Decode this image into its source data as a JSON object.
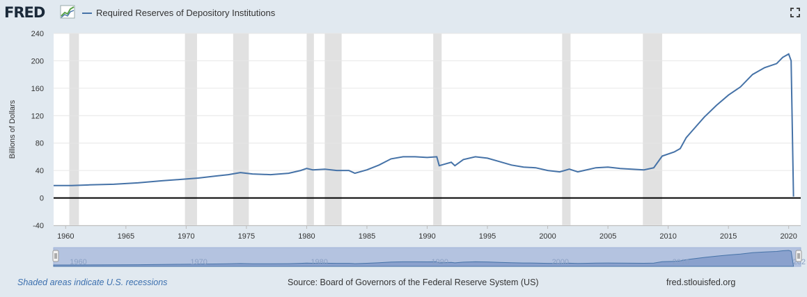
{
  "header": {
    "logo_text": "FRED",
    "legend_label": "Required Reserves of Depository Institutions",
    "fullscreen_icon": "fullscreen-icon"
  },
  "footer": {
    "recession_note": "Shaded areas indicate U.S. recessions",
    "source": "Source: Board of Governors of the Federal Reserve System (US)",
    "url": "fred.stlouisfed.org"
  },
  "colors": {
    "series": "#4572a7",
    "recession": "#e1e1e1",
    "background": "#e1e9f0",
    "navigator_fill": "#b4c3e0"
  },
  "chart_data": {
    "type": "line",
    "title": "",
    "xlabel": "",
    "ylabel": "Billions of Dollars",
    "xlim": [
      1959,
      2021
    ],
    "ylim": [
      -40,
      240
    ],
    "yticks": [
      -40,
      0,
      40,
      80,
      120,
      160,
      200,
      240
    ],
    "xticks": [
      1960,
      1965,
      1970,
      1975,
      1980,
      1985,
      1990,
      1995,
      2000,
      2005,
      2010,
      2015,
      2020
    ],
    "navigator_labels": [
      "1960",
      "1970",
      "1980",
      "1990",
      "2000",
      "2010",
      "202"
    ],
    "zero_line": true,
    "grid": true,
    "legend_position": "top-left",
    "recessions": [
      [
        1960.3,
        1961.1
      ],
      [
        1969.9,
        1970.9
      ],
      [
        1973.9,
        1975.2
      ],
      [
        1980.0,
        1980.6
      ],
      [
        1981.5,
        1982.9
      ],
      [
        1990.5,
        1991.2
      ],
      [
        2001.2,
        2001.9
      ],
      [
        2007.9,
        2009.5
      ]
    ],
    "series": [
      {
        "name": "Required Reserves of Depository Institutions",
        "x": [
          1959.0,
          1960.5,
          1962.0,
          1964.0,
          1966.0,
          1968.0,
          1969.5,
          1971.0,
          1972.5,
          1973.5,
          1974.5,
          1975.5,
          1977.0,
          1978.5,
          1979.5,
          1980.0,
          1980.5,
          1981.5,
          1982.5,
          1983.5,
          1984.0,
          1985.0,
          1986.0,
          1987.0,
          1988.0,
          1989.0,
          1990.0,
          1990.8,
          1991.0,
          1992.0,
          1992.3,
          1993.0,
          1994.0,
          1995.0,
          1996.0,
          1997.0,
          1998.0,
          1999.0,
          2000.0,
          2001.0,
          2001.8,
          2002.5,
          2003.0,
          2004.0,
          2005.0,
          2006.0,
          2007.0,
          2008.0,
          2008.8,
          2009.5,
          2010.5,
          2011.0,
          2011.5,
          2012.0,
          2013.0,
          2014.0,
          2015.0,
          2016.0,
          2017.0,
          2018.0,
          2019.0,
          2019.5,
          2020.0,
          2020.2,
          2020.4
        ],
        "values": [
          18,
          18,
          19,
          20,
          22,
          25,
          27,
          29,
          32,
          34,
          37,
          35,
          34,
          36,
          40,
          43,
          41,
          42,
          40,
          40,
          36,
          41,
          48,
          57,
          60,
          60,
          59,
          60,
          47,
          52,
          47,
          56,
          60,
          58,
          53,
          48,
          45,
          44,
          40,
          38,
          42,
          38,
          40,
          44,
          45,
          43,
          42,
          41,
          44,
          61,
          67,
          72,
          88,
          98,
          118,
          135,
          150,
          162,
          180,
          190,
          196,
          205,
          210,
          200,
          2
        ]
      }
    ]
  }
}
